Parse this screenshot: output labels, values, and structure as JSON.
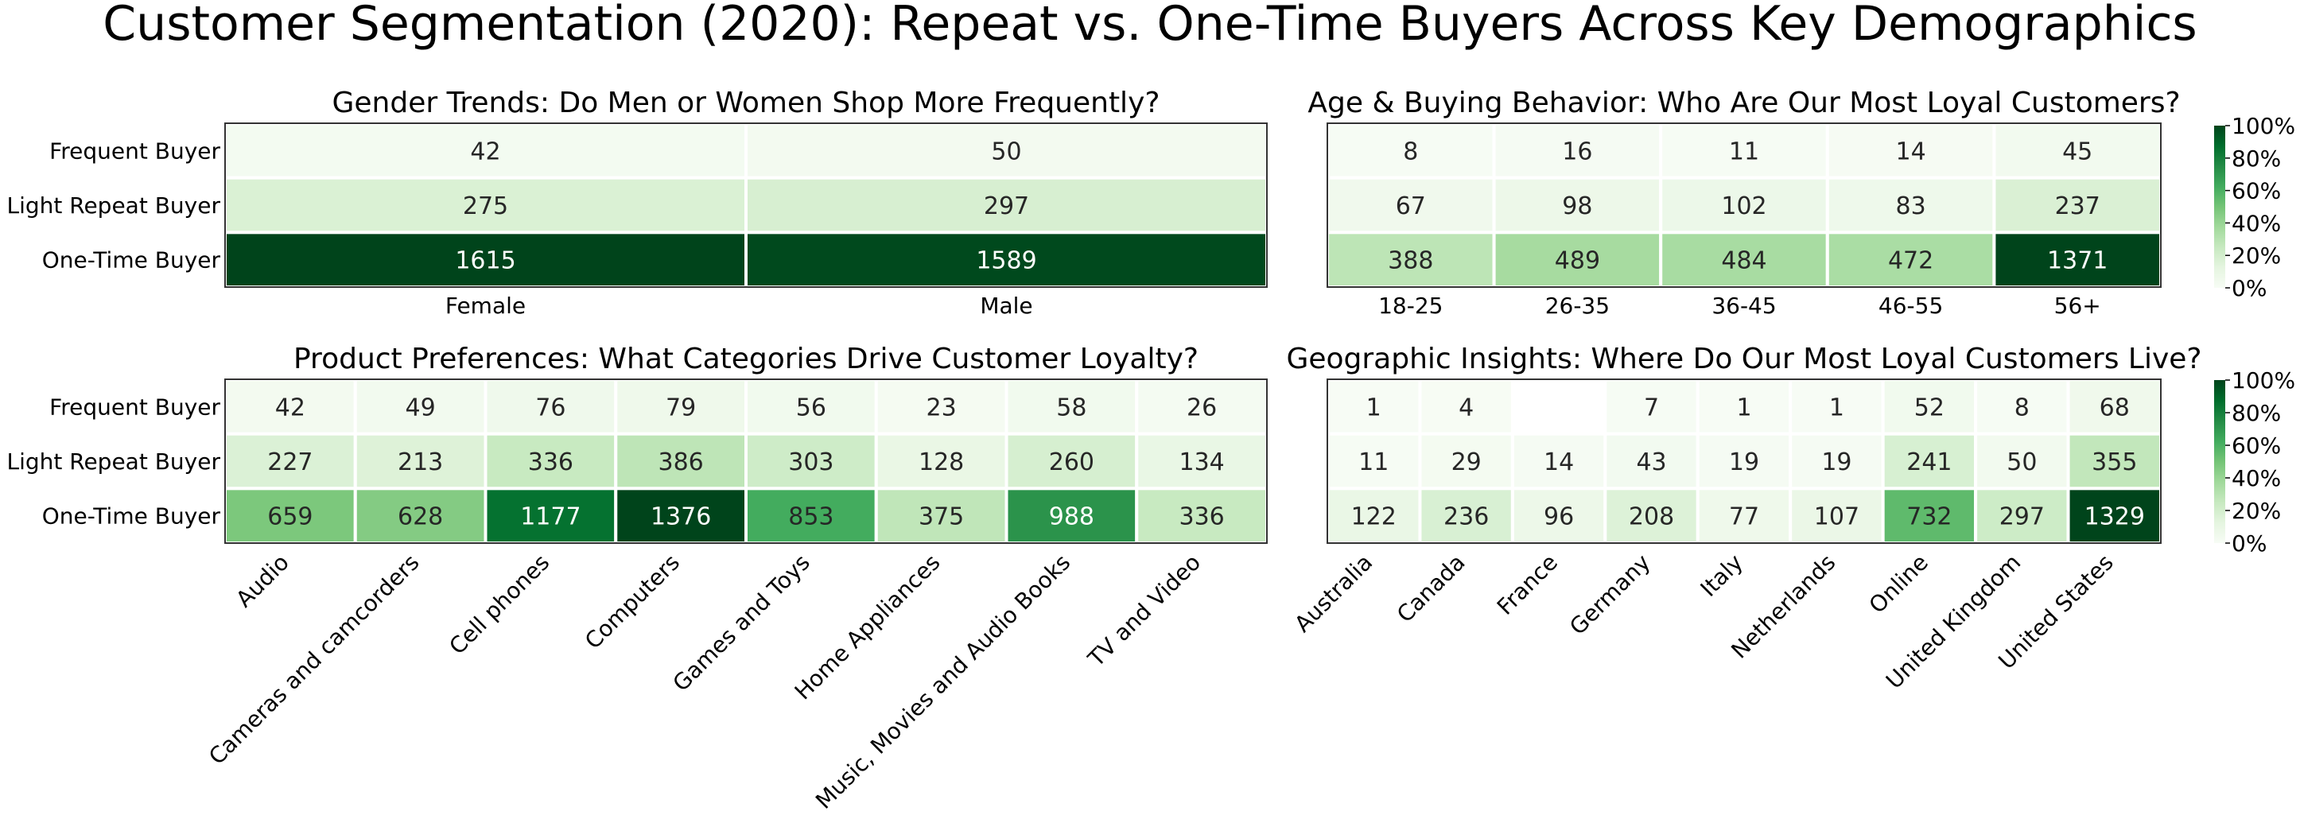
{
  "title": "Customer Segmentation (2020): Repeat vs. One-Time Buyers Across Key Demographics",
  "colormap": [
    "#f7fcf5",
    "#e5f5e0",
    "#c7e9c0",
    "#a1d99b",
    "#74c476",
    "#41ab5d",
    "#238b45",
    "#006d2c",
    "#00441b"
  ],
  "colorbar_ticks": [
    "0%",
    "20%",
    "40%",
    "60%",
    "80%",
    "100%"
  ],
  "chart_data": [
    {
      "type": "heatmap",
      "title": "Gender Trends: Do Men or Women Shop More Frequently?",
      "rows": [
        "Frequent Buyer",
        "Light Repeat Buyer",
        "One-Time Buyer"
      ],
      "columns": [
        "Female",
        "Male"
      ],
      "values": [
        [
          42,
          50
        ],
        [
          275,
          297
        ],
        [
          1615,
          1589
        ]
      ],
      "colorbar": false
    },
    {
      "type": "heatmap",
      "title": "Age & Buying Behavior: Who Are Our Most Loyal Customers?",
      "rows": [
        "Frequent Buyer",
        "Light Repeat Buyer",
        "One-Time Buyer"
      ],
      "columns": [
        "18-25",
        "26-35",
        "36-45",
        "46-55",
        "56+"
      ],
      "values": [
        [
          8,
          16,
          11,
          14,
          45
        ],
        [
          67,
          98,
          102,
          83,
          237
        ],
        [
          388,
          489,
          484,
          472,
          1371
        ]
      ],
      "colorbar": true
    },
    {
      "type": "heatmap",
      "title": "Product Preferences: What Categories Drive Customer Loyalty?",
      "rows": [
        "Frequent Buyer",
        "Light Repeat Buyer",
        "One-Time Buyer"
      ],
      "columns": [
        "Audio",
        "Cameras and camcorders",
        "Cell phones",
        "Computers",
        "Games and Toys",
        "Home Appliances",
        "Music, Movies and Audio Books",
        "TV and Video"
      ],
      "values": [
        [
          42,
          49,
          76,
          79,
          56,
          23,
          58,
          26
        ],
        [
          227,
          213,
          336,
          386,
          303,
          128,
          260,
          134
        ],
        [
          659,
          628,
          1177,
          1376,
          853,
          375,
          988,
          336
        ]
      ],
      "colorbar": false
    },
    {
      "type": "heatmap",
      "title": "Geographic Insights: Where Do Our Most Loyal Customers Live?",
      "rows": [
        "Frequent Buyer",
        "Light Repeat Buyer",
        "One-Time Buyer"
      ],
      "columns": [
        "Australia",
        "Canada",
        "France",
        "Germany",
        "Italy",
        "Netherlands",
        "Online",
        "United Kingdom",
        "United States"
      ],
      "values": [
        [
          1,
          4,
          null,
          7,
          1,
          1,
          52,
          8,
          68
        ],
        [
          11,
          29,
          14,
          43,
          19,
          19,
          241,
          50,
          355
        ],
        [
          122,
          236,
          96,
          208,
          77,
          107,
          732,
          297,
          1329
        ]
      ],
      "colorbar": true
    }
  ]
}
